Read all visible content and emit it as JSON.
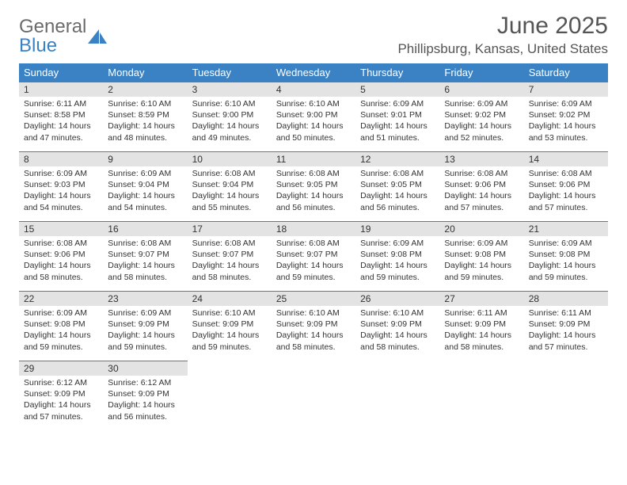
{
  "logo": {
    "general": "General",
    "blue": "Blue"
  },
  "title": "June 2025",
  "subtitle": "Phillipsburg, Kansas, United States",
  "header_bg": "#3b82c4",
  "header_text": "#ffffff",
  "daynum_bg": "#e3e3e3",
  "border_color": "#3b82c4",
  "daynames": [
    "Sunday",
    "Monday",
    "Tuesday",
    "Wednesday",
    "Thursday",
    "Friday",
    "Saturday"
  ],
  "font_family": "Arial",
  "fontsize_title": 30,
  "fontsize_subtitle": 17,
  "fontsize_header": 13,
  "fontsize_body": 10.5,
  "weeks": [
    [
      {
        "n": 1,
        "sr": "6:11 AM",
        "ss": "8:58 PM",
        "dl": "14 hours and 47 minutes."
      },
      {
        "n": 2,
        "sr": "6:10 AM",
        "ss": "8:59 PM",
        "dl": "14 hours and 48 minutes."
      },
      {
        "n": 3,
        "sr": "6:10 AM",
        "ss": "9:00 PM",
        "dl": "14 hours and 49 minutes."
      },
      {
        "n": 4,
        "sr": "6:10 AM",
        "ss": "9:00 PM",
        "dl": "14 hours and 50 minutes."
      },
      {
        "n": 5,
        "sr": "6:09 AM",
        "ss": "9:01 PM",
        "dl": "14 hours and 51 minutes."
      },
      {
        "n": 6,
        "sr": "6:09 AM",
        "ss": "9:02 PM",
        "dl": "14 hours and 52 minutes."
      },
      {
        "n": 7,
        "sr": "6:09 AM",
        "ss": "9:02 PM",
        "dl": "14 hours and 53 minutes."
      }
    ],
    [
      {
        "n": 8,
        "sr": "6:09 AM",
        "ss": "9:03 PM",
        "dl": "14 hours and 54 minutes."
      },
      {
        "n": 9,
        "sr": "6:09 AM",
        "ss": "9:04 PM",
        "dl": "14 hours and 54 minutes."
      },
      {
        "n": 10,
        "sr": "6:08 AM",
        "ss": "9:04 PM",
        "dl": "14 hours and 55 minutes."
      },
      {
        "n": 11,
        "sr": "6:08 AM",
        "ss": "9:05 PM",
        "dl": "14 hours and 56 minutes."
      },
      {
        "n": 12,
        "sr": "6:08 AM",
        "ss": "9:05 PM",
        "dl": "14 hours and 56 minutes."
      },
      {
        "n": 13,
        "sr": "6:08 AM",
        "ss": "9:06 PM",
        "dl": "14 hours and 57 minutes."
      },
      {
        "n": 14,
        "sr": "6:08 AM",
        "ss": "9:06 PM",
        "dl": "14 hours and 57 minutes."
      }
    ],
    [
      {
        "n": 15,
        "sr": "6:08 AM",
        "ss": "9:06 PM",
        "dl": "14 hours and 58 minutes."
      },
      {
        "n": 16,
        "sr": "6:08 AM",
        "ss": "9:07 PM",
        "dl": "14 hours and 58 minutes."
      },
      {
        "n": 17,
        "sr": "6:08 AM",
        "ss": "9:07 PM",
        "dl": "14 hours and 58 minutes."
      },
      {
        "n": 18,
        "sr": "6:08 AM",
        "ss": "9:07 PM",
        "dl": "14 hours and 59 minutes."
      },
      {
        "n": 19,
        "sr": "6:09 AM",
        "ss": "9:08 PM",
        "dl": "14 hours and 59 minutes."
      },
      {
        "n": 20,
        "sr": "6:09 AM",
        "ss": "9:08 PM",
        "dl": "14 hours and 59 minutes."
      },
      {
        "n": 21,
        "sr": "6:09 AM",
        "ss": "9:08 PM",
        "dl": "14 hours and 59 minutes."
      }
    ],
    [
      {
        "n": 22,
        "sr": "6:09 AM",
        "ss": "9:08 PM",
        "dl": "14 hours and 59 minutes."
      },
      {
        "n": 23,
        "sr": "6:09 AM",
        "ss": "9:09 PM",
        "dl": "14 hours and 59 minutes."
      },
      {
        "n": 24,
        "sr": "6:10 AM",
        "ss": "9:09 PM",
        "dl": "14 hours and 59 minutes."
      },
      {
        "n": 25,
        "sr": "6:10 AM",
        "ss": "9:09 PM",
        "dl": "14 hours and 58 minutes."
      },
      {
        "n": 26,
        "sr": "6:10 AM",
        "ss": "9:09 PM",
        "dl": "14 hours and 58 minutes."
      },
      {
        "n": 27,
        "sr": "6:11 AM",
        "ss": "9:09 PM",
        "dl": "14 hours and 58 minutes."
      },
      {
        "n": 28,
        "sr": "6:11 AM",
        "ss": "9:09 PM",
        "dl": "14 hours and 57 minutes."
      }
    ],
    [
      {
        "n": 29,
        "sr": "6:12 AM",
        "ss": "9:09 PM",
        "dl": "14 hours and 57 minutes."
      },
      {
        "n": 30,
        "sr": "6:12 AM",
        "ss": "9:09 PM",
        "dl": "14 hours and 56 minutes."
      },
      null,
      null,
      null,
      null,
      null
    ]
  ]
}
